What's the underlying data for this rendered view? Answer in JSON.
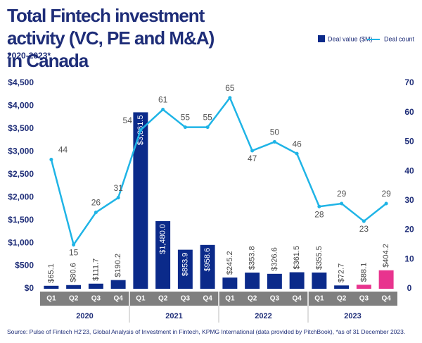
{
  "chart_data": {
    "type": "bar",
    "title": "Total Fintech investment activity (VC, PE and M&A) in Canada",
    "subtitle": "2020-2023*",
    "source": "Source: Pulse of Fintech H2'23, Global Analysis of Investment in Fintech, KPMG International (data provided by PitchBook), *as of 31 December 2023.",
    "categories": [
      "Q1",
      "Q2",
      "Q3",
      "Q4",
      "Q1",
      "Q2",
      "Q3",
      "Q4",
      "Q1",
      "Q2",
      "Q3",
      "Q4",
      "Q1",
      "Q2",
      "Q3",
      "Q4"
    ],
    "groups": [
      "2020",
      "2021",
      "2022",
      "2023"
    ],
    "series": [
      {
        "name": "Deal value ($M)",
        "color": "#0b2a8a",
        "values": [
          65.1,
          80.6,
          111.7,
          190.2,
          3861.5,
          1480.0,
          853.9,
          958.6,
          245.2,
          353.8,
          326.6,
          361.5,
          355.5,
          72.7,
          88.1,
          404.2
        ],
        "value_labels": [
          "$65.1",
          "$80.6",
          "$111.7",
          "$190.2",
          "$3,861.5",
          "$1,480.0",
          "$853.9",
          "$958.6",
          "$245.2",
          "$353.8",
          "$326.6",
          "$361.5",
          "$355.5",
          "$72.7",
          "$88.1",
          "$404.2"
        ],
        "colors": [
          "#0b2a8a",
          "#0b2a8a",
          "#0b2a8a",
          "#0b2a8a",
          "#0b2a8a",
          "#0b2a8a",
          "#0b2a8a",
          "#0b2a8a",
          "#0b2a8a",
          "#0b2a8a",
          "#0b2a8a",
          "#0b2a8a",
          "#0b2a8a",
          "#0b2a8a",
          "#e8348e",
          "#e8348e"
        ]
      },
      {
        "name": "Deal count",
        "color": "#1fb4e6",
        "type": "line",
        "axis": "y2",
        "values": [
          44,
          15,
          26,
          31,
          54,
          61,
          55,
          55,
          65,
          47,
          50,
          46,
          28,
          29,
          23,
          29
        ]
      }
    ],
    "ylim": [
      0,
      4500
    ],
    "yticks": [
      {
        "value": 0,
        "label": "$0"
      },
      {
        "value": 500,
        "label": "$500"
      },
      {
        "value": 1000,
        "label": "$1,000"
      },
      {
        "value": 1500,
        "label": "$1,500"
      },
      {
        "value": 2000,
        "label": "$2,000"
      },
      {
        "value": 2500,
        "label": "$2,500"
      },
      {
        "value": 3000,
        "label": "$3,000"
      },
      {
        "value": 3500,
        "label": "$3,500"
      },
      {
        "value": 4000,
        "label": "$4,000"
      },
      {
        "value": 4500,
        "label": "$4,500"
      }
    ],
    "y2lim": [
      0,
      70
    ],
    "y2ticks": [
      0,
      10,
      20,
      30,
      40,
      50,
      60,
      70
    ]
  }
}
